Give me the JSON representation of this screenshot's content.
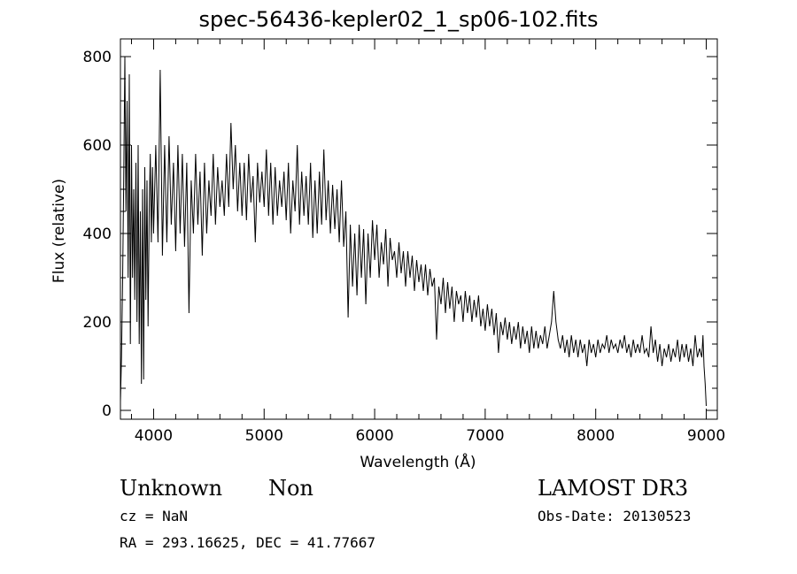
{
  "chart_data": {
    "type": "line",
    "title": "spec-56436-kepler02_1_sp06-102.fits",
    "xlabel": "Wavelength (Å)",
    "ylabel": "Flux (relative)",
    "xlim": [
      3700,
      9100
    ],
    "ylim": [
      -20,
      840
    ],
    "xticks": [
      4000,
      5000,
      6000,
      7000,
      8000,
      9000
    ],
    "yticks": [
      0,
      200,
      400,
      600,
      800
    ],
    "grid": false,
    "series": [
      {
        "points": [
          [
            3700,
            20
          ],
          [
            3710,
            120
          ],
          [
            3720,
            300
          ],
          [
            3730,
            520
          ],
          [
            3740,
            800
          ],
          [
            3750,
            450
          ],
          [
            3760,
            700
          ],
          [
            3770,
            300
          ],
          [
            3780,
            760
          ],
          [
            3790,
            150
          ],
          [
            3800,
            600
          ],
          [
            3810,
            300
          ],
          [
            3820,
            500
          ],
          [
            3830,
            250
          ],
          [
            3840,
            560
          ],
          [
            3850,
            200
          ],
          [
            3860,
            600
          ],
          [
            3870,
            150
          ],
          [
            3880,
            450
          ],
          [
            3890,
            60
          ],
          [
            3900,
            500
          ],
          [
            3910,
            70
          ],
          [
            3920,
            550
          ],
          [
            3930,
            250
          ],
          [
            3940,
            520
          ],
          [
            3950,
            190
          ],
          [
            3960,
            450
          ],
          [
            3970,
            580
          ],
          [
            3980,
            380
          ],
          [
            3990,
            550
          ],
          [
            4000,
            400
          ],
          [
            4020,
            600
          ],
          [
            4040,
            380
          ],
          [
            4060,
            770
          ],
          [
            4080,
            350
          ],
          [
            4100,
            600
          ],
          [
            4120,
            380
          ],
          [
            4140,
            620
          ],
          [
            4160,
            420
          ],
          [
            4180,
            560
          ],
          [
            4200,
            360
          ],
          [
            4220,
            600
          ],
          [
            4240,
            400
          ],
          [
            4260,
            580
          ],
          [
            4280,
            370
          ],
          [
            4300,
            560
          ],
          [
            4320,
            220
          ],
          [
            4340,
            520
          ],
          [
            4360,
            400
          ],
          [
            4380,
            580
          ],
          [
            4400,
            420
          ],
          [
            4420,
            540
          ],
          [
            4440,
            350
          ],
          [
            4460,
            560
          ],
          [
            4480,
            400
          ],
          [
            4500,
            520
          ],
          [
            4520,
            440
          ],
          [
            4540,
            580
          ],
          [
            4560,
            420
          ],
          [
            4580,
            550
          ],
          [
            4600,
            460
          ],
          [
            4620,
            520
          ],
          [
            4640,
            440
          ],
          [
            4660,
            580
          ],
          [
            4680,
            460
          ],
          [
            4700,
            650
          ],
          [
            4720,
            500
          ],
          [
            4740,
            600
          ],
          [
            4760,
            450
          ],
          [
            4780,
            560
          ],
          [
            4800,
            440
          ],
          [
            4820,
            560
          ],
          [
            4840,
            430
          ],
          [
            4860,
            580
          ],
          [
            4880,
            470
          ],
          [
            4900,
            530
          ],
          [
            4920,
            380
          ],
          [
            4940,
            560
          ],
          [
            4960,
            470
          ],
          [
            4980,
            540
          ],
          [
            5000,
            460
          ],
          [
            5020,
            590
          ],
          [
            5040,
            440
          ],
          [
            5060,
            560
          ],
          [
            5080,
            420
          ],
          [
            5100,
            550
          ],
          [
            5120,
            440
          ],
          [
            5140,
            520
          ],
          [
            5160,
            460
          ],
          [
            5180,
            540
          ],
          [
            5200,
            430
          ],
          [
            5220,
            560
          ],
          [
            5240,
            400
          ],
          [
            5260,
            520
          ],
          [
            5280,
            450
          ],
          [
            5300,
            600
          ],
          [
            5320,
            420
          ],
          [
            5340,
            540
          ],
          [
            5360,
            440
          ],
          [
            5380,
            530
          ],
          [
            5400,
            420
          ],
          [
            5420,
            560
          ],
          [
            5440,
            390
          ],
          [
            5460,
            520
          ],
          [
            5480,
            400
          ],
          [
            5500,
            540
          ],
          [
            5520,
            420
          ],
          [
            5540,
            590
          ],
          [
            5560,
            430
          ],
          [
            5580,
            520
          ],
          [
            5600,
            400
          ],
          [
            5620,
            510
          ],
          [
            5640,
            410
          ],
          [
            5660,
            500
          ],
          [
            5680,
            380
          ],
          [
            5700,
            520
          ],
          [
            5720,
            370
          ],
          [
            5740,
            450
          ],
          [
            5760,
            210
          ],
          [
            5780,
            420
          ],
          [
            5800,
            280
          ],
          [
            5820,
            400
          ],
          [
            5840,
            260
          ],
          [
            5860,
            420
          ],
          [
            5880,
            300
          ],
          [
            5900,
            410
          ],
          [
            5920,
            240
          ],
          [
            5940,
            400
          ],
          [
            5960,
            300
          ],
          [
            5980,
            430
          ],
          [
            6000,
            340
          ],
          [
            6020,
            420
          ],
          [
            6040,
            300
          ],
          [
            6060,
            380
          ],
          [
            6080,
            330
          ],
          [
            6100,
            410
          ],
          [
            6120,
            280
          ],
          [
            6140,
            390
          ],
          [
            6160,
            340
          ],
          [
            6180,
            360
          ],
          [
            6200,
            300
          ],
          [
            6220,
            380
          ],
          [
            6240,
            310
          ],
          [
            6260,
            360
          ],
          [
            6280,
            280
          ],
          [
            6300,
            360
          ],
          [
            6320,
            300
          ],
          [
            6340,
            350
          ],
          [
            6360,
            270
          ],
          [
            6380,
            340
          ],
          [
            6400,
            290
          ],
          [
            6420,
            330
          ],
          [
            6440,
            270
          ],
          [
            6460,
            330
          ],
          [
            6480,
            260
          ],
          [
            6500,
            320
          ],
          [
            6520,
            280
          ],
          [
            6540,
            300
          ],
          [
            6560,
            160
          ],
          [
            6580,
            280
          ],
          [
            6600,
            240
          ],
          [
            6620,
            300
          ],
          [
            6640,
            220
          ],
          [
            6660,
            290
          ],
          [
            6680,
            230
          ],
          [
            6700,
            280
          ],
          [
            6720,
            200
          ],
          [
            6740,
            270
          ],
          [
            6760,
            240
          ],
          [
            6780,
            260
          ],
          [
            6800,
            200
          ],
          [
            6820,
            270
          ],
          [
            6840,
            220
          ],
          [
            6860,
            260
          ],
          [
            6880,
            200
          ],
          [
            6900,
            250
          ],
          [
            6920,
            210
          ],
          [
            6940,
            260
          ],
          [
            6960,
            190
          ],
          [
            6980,
            230
          ],
          [
            7000,
            180
          ],
          [
            7020,
            240
          ],
          [
            7040,
            190
          ],
          [
            7060,
            230
          ],
          [
            7080,
            170
          ],
          [
            7100,
            220
          ],
          [
            7120,
            130
          ],
          [
            7140,
            200
          ],
          [
            7160,
            170
          ],
          [
            7180,
            210
          ],
          [
            7200,
            160
          ],
          [
            7220,
            200
          ],
          [
            7240,
            150
          ],
          [
            7260,
            190
          ],
          [
            7280,
            160
          ],
          [
            7300,
            200
          ],
          [
            7320,
            140
          ],
          [
            7340,
            190
          ],
          [
            7360,
            150
          ],
          [
            7380,
            180
          ],
          [
            7400,
            130
          ],
          [
            7420,
            190
          ],
          [
            7440,
            140
          ],
          [
            7460,
            180
          ],
          [
            7480,
            140
          ],
          [
            7500,
            170
          ],
          [
            7520,
            150
          ],
          [
            7540,
            190
          ],
          [
            7560,
            140
          ],
          [
            7580,
            170
          ],
          [
            7600,
            200
          ],
          [
            7620,
            270
          ],
          [
            7640,
            200
          ],
          [
            7660,
            160
          ],
          [
            7680,
            140
          ],
          [
            7700,
            170
          ],
          [
            7720,
            130
          ],
          [
            7740,
            160
          ],
          [
            7760,
            120
          ],
          [
            7780,
            170
          ],
          [
            7800,
            130
          ],
          [
            7820,
            160
          ],
          [
            7840,
            120
          ],
          [
            7860,
            160
          ],
          [
            7880,
            130
          ],
          [
            7900,
            150
          ],
          [
            7920,
            100
          ],
          [
            7940,
            160
          ],
          [
            7960,
            130
          ],
          [
            7980,
            150
          ],
          [
            8000,
            120
          ],
          [
            8020,
            160
          ],
          [
            8040,
            130
          ],
          [
            8060,
            150
          ],
          [
            8080,
            140
          ],
          [
            8100,
            170
          ],
          [
            8120,
            130
          ],
          [
            8140,
            160
          ],
          [
            8160,
            140
          ],
          [
            8180,
            150
          ],
          [
            8200,
            130
          ],
          [
            8220,
            160
          ],
          [
            8240,
            140
          ],
          [
            8260,
            170
          ],
          [
            8280,
            130
          ],
          [
            8300,
            150
          ],
          [
            8320,
            120
          ],
          [
            8340,
            160
          ],
          [
            8360,
            130
          ],
          [
            8380,
            150
          ],
          [
            8400,
            130
          ],
          [
            8420,
            170
          ],
          [
            8440,
            130
          ],
          [
            8460,
            140
          ],
          [
            8480,
            120
          ],
          [
            8500,
            190
          ],
          [
            8520,
            130
          ],
          [
            8540,
            160
          ],
          [
            8560,
            110
          ],
          [
            8580,
            150
          ],
          [
            8600,
            100
          ],
          [
            8620,
            140
          ],
          [
            8640,
            120
          ],
          [
            8660,
            150
          ],
          [
            8680,
            110
          ],
          [
            8700,
            140
          ],
          [
            8720,
            120
          ],
          [
            8740,
            160
          ],
          [
            8760,
            110
          ],
          [
            8780,
            150
          ],
          [
            8800,
            120
          ],
          [
            8820,
            150
          ],
          [
            8840,
            110
          ],
          [
            8860,
            140
          ],
          [
            8880,
            100
          ],
          [
            8900,
            170
          ],
          [
            8920,
            120
          ],
          [
            8940,
            140
          ],
          [
            8960,
            120
          ],
          [
            8970,
            170
          ],
          [
            8980,
            100
          ],
          [
            8990,
            60
          ],
          [
            9000,
            10
          ]
        ]
      }
    ]
  },
  "labels": {
    "object_class": "Unknown",
    "object_subclass": "Non",
    "survey": "LAMOST DR3",
    "cz": "cz = NaN",
    "obs_date": "Obs-Date: 20130523",
    "coords": "RA = 293.16625, DEC =  41.77667"
  }
}
